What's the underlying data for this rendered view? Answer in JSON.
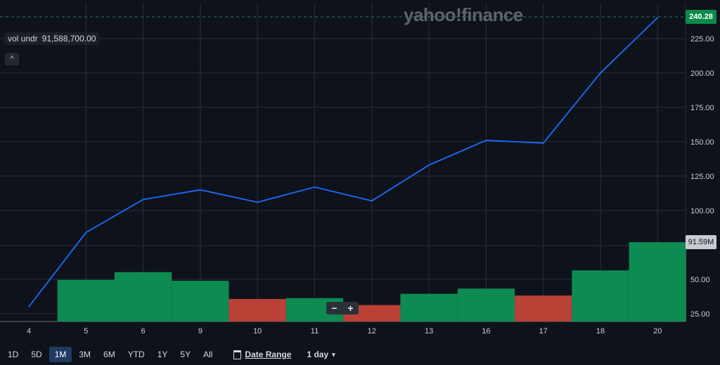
{
  "brand": "yahoo!finance",
  "legend": {
    "label": "vol undr",
    "value": "91,588,700.00"
  },
  "collapse_glyph": "^",
  "last_price_flag": "240.28",
  "last_volume_flag": "91.59M",
  "zoom": {
    "minus": "−",
    "plus": "+"
  },
  "range_buttons": [
    "1D",
    "5D",
    "1M",
    "3M",
    "6M",
    "YTD",
    "1Y",
    "5Y",
    "All"
  ],
  "active_range": "1M",
  "date_range_label": "Date Range",
  "interval_label": "1 day",
  "icons": {
    "date_range": "calendar-icon",
    "interval": "chevron-down-icon",
    "collapse": "chevron-up-icon"
  },
  "colors": {
    "background": "#0e121b",
    "grid": "#2a2f38",
    "price_line": "#1a6cff",
    "volume_up": "#0d8b53",
    "volume_down": "#b94136",
    "price_flag": "#0a8a4a"
  },
  "chart_data": {
    "type": "line",
    "x": [
      "4",
      "5",
      "6",
      "9",
      "10",
      "11",
      "12",
      "13",
      "16",
      "17",
      "18",
      "20"
    ],
    "series": [
      {
        "values": [
          30,
          84,
          108,
          115,
          106,
          117,
          107,
          133,
          151,
          149,
          200,
          240.28
        ]
      }
    ],
    "volume": {
      "values": [
        null,
        48,
        57,
        47,
        26,
        27,
        19,
        32,
        38,
        30,
        59,
        91.59
      ],
      "direction": [
        null,
        "up",
        "up",
        "up",
        "down",
        "up",
        "down",
        "up",
        "up",
        "down",
        "up",
        "up"
      ]
    },
    "y_ticks": [
      25,
      50,
      91.59,
      100,
      125,
      150,
      175,
      200,
      225
    ],
    "y_tick_labels": [
      "25.00",
      "50.00",
      "91.59M",
      "100.00",
      "125.00",
      "150.00",
      "175.00",
      "200.00",
      "225.00"
    ],
    "ylim": [
      20,
      245
    ],
    "grid": true,
    "title": "",
    "xlabel": "",
    "ylabel": ""
  }
}
